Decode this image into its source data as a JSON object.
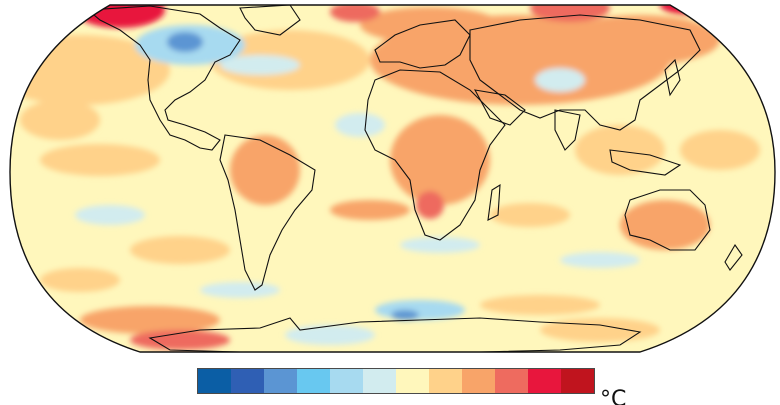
{
  "map": {
    "base_color": "#fff7bc",
    "outline_color": "#111111"
  },
  "legend": {
    "colors": [
      "#0b5ea5",
      "#2f5fb4",
      "#5b95d3",
      "#68c8f0",
      "#a7daf0",
      "#d2ecef",
      "#fff7bc",
      "#ffd28a",
      "#f8a469",
      "#ee6b5f",
      "#e8163d",
      "#c0141e"
    ],
    "unit": "°C"
  }
}
